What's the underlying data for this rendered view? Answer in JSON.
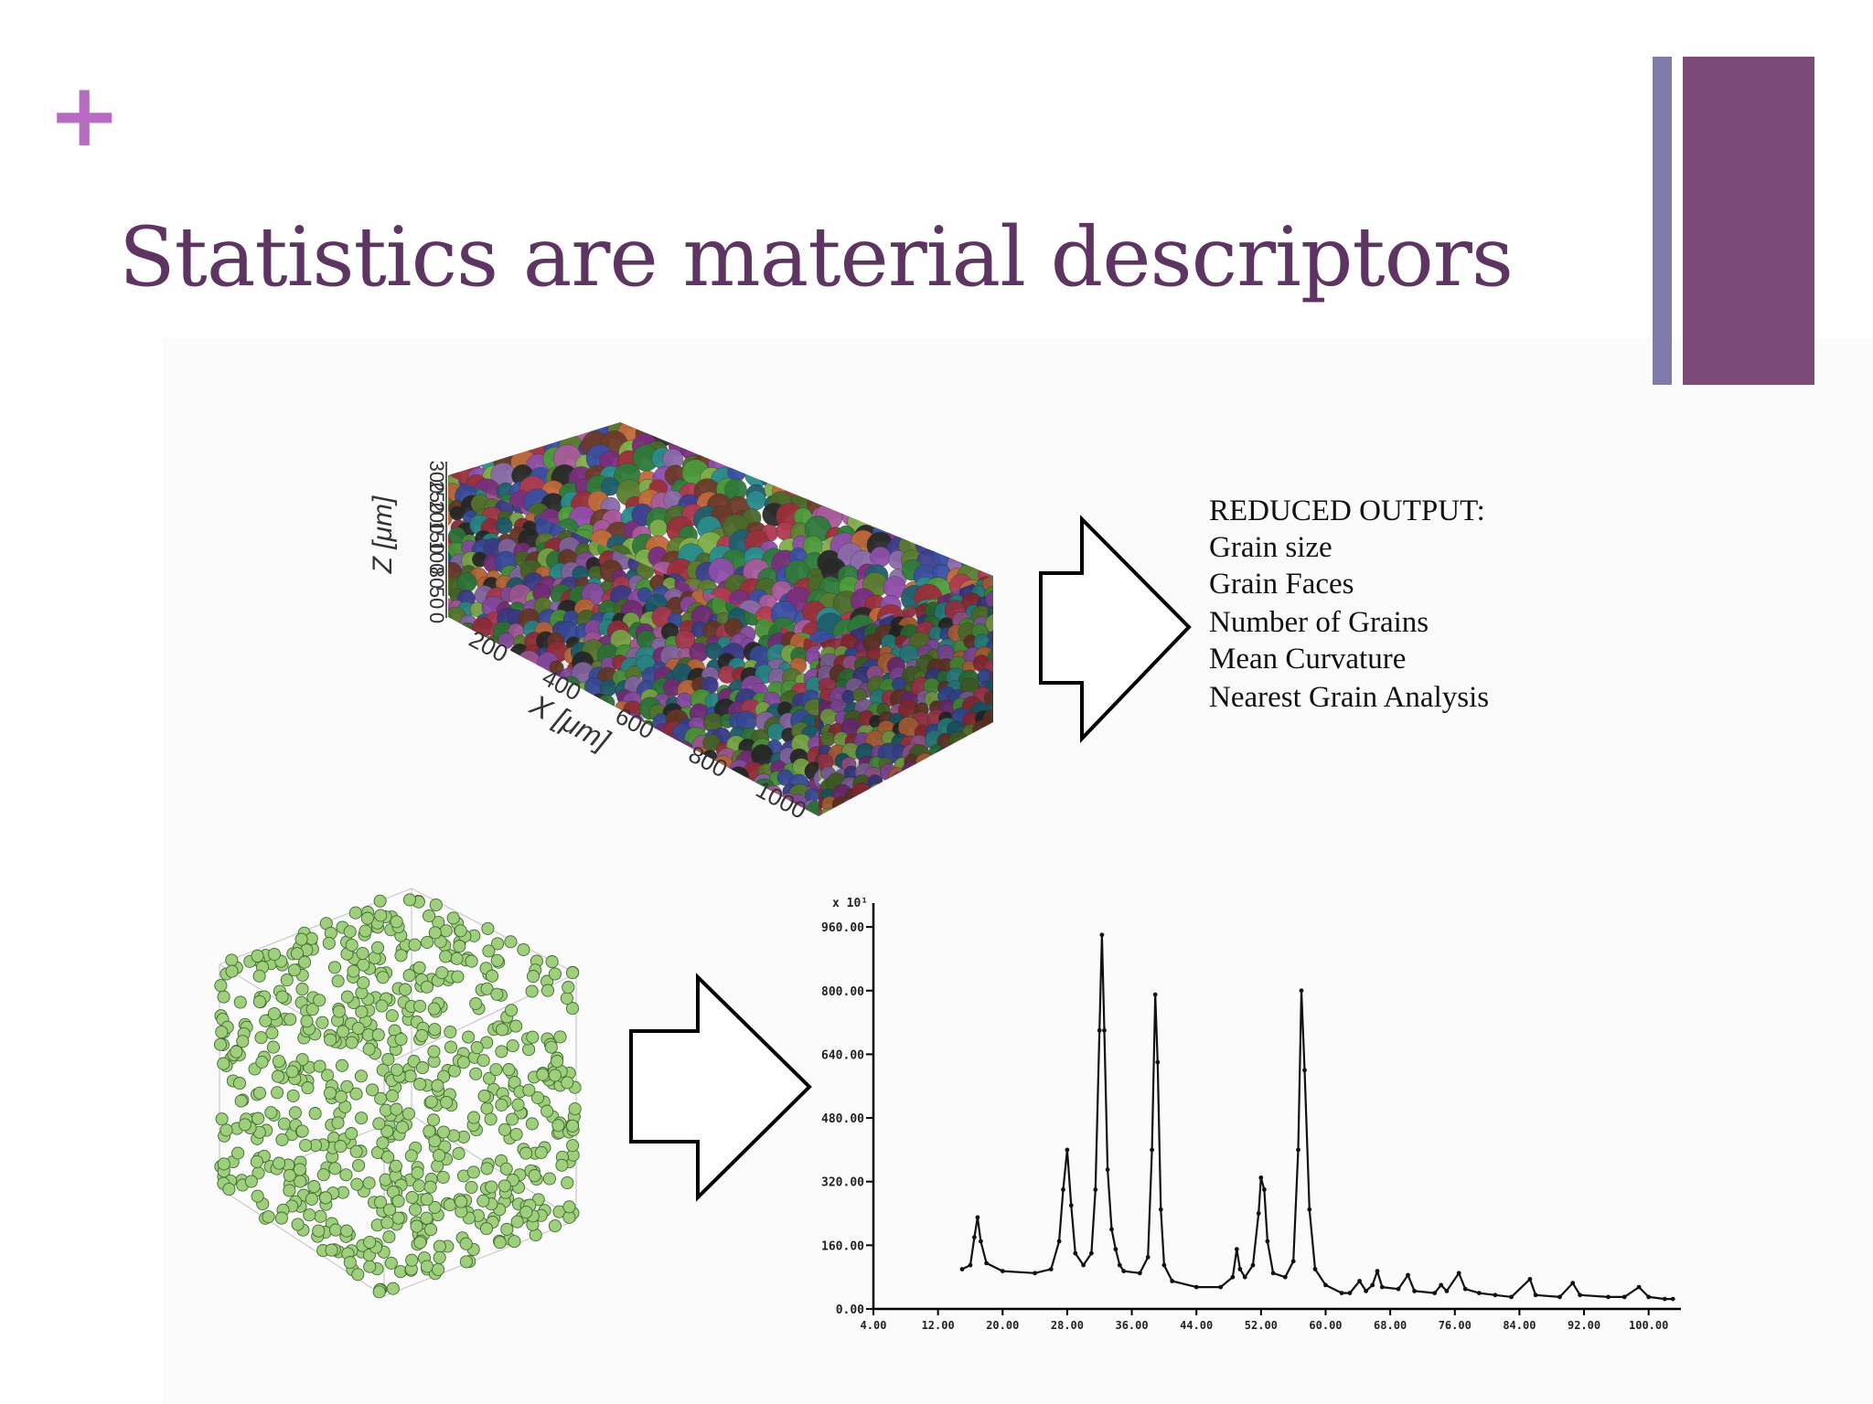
{
  "slide": {
    "plus_sign": "+",
    "title": "Statistics are material descriptors",
    "colors": {
      "plum": "#7b4a76",
      "title": "#5e3463",
      "slate": "#7f7ba8",
      "plus": "#b76bc3"
    }
  },
  "microstructure": {
    "z_axis_label": "Z [μm]",
    "z_ticks": [
      "0",
      "50",
      "80",
      "100",
      "150",
      "200",
      "250",
      "300"
    ],
    "x_axis_label": "X [μm]",
    "x_ticks": [
      "200",
      "400",
      "600",
      "800",
      "1000"
    ]
  },
  "reduced_output": {
    "heading": "REDUCED OUTPUT:",
    "items": [
      "Grain size",
      "Grain Faces",
      "Number of Grains",
      "Mean Curvature",
      "Nearest Grain Analysis"
    ]
  },
  "atoms_plot": {
    "sphere_color": "#9fcf7d"
  },
  "chart_data": {
    "type": "line",
    "title": "",
    "xlabel": "",
    "ylabel": "",
    "y_multiplier_label": "x 10¹",
    "xlim": [
      4,
      104
    ],
    "ylim": [
      0,
      1020
    ],
    "x_ticks": [
      "4.00",
      "12.00",
      "20.00",
      "28.00",
      "36.00",
      "44.00",
      "52.00",
      "60.00",
      "68.00",
      "76.00",
      "84.00",
      "92.00",
      "100.00"
    ],
    "y_ticks": [
      "0.00",
      "160.00",
      "320.00",
      "480.00",
      "640.00",
      "800.00",
      "960.00"
    ],
    "grid": false,
    "series": [
      {
        "points": [
          [
            15,
            100
          ],
          [
            16,
            110
          ],
          [
            16.5,
            180
          ],
          [
            16.9,
            230
          ],
          [
            17.3,
            170
          ],
          [
            18,
            115
          ],
          [
            20,
            95
          ],
          [
            24,
            90
          ],
          [
            26,
            100
          ],
          [
            27,
            170
          ],
          [
            27.5,
            300
          ],
          [
            28,
            400
          ],
          [
            28.5,
            260
          ],
          [
            29,
            140
          ],
          [
            30,
            110
          ],
          [
            31,
            140
          ],
          [
            31.5,
            300
          ],
          [
            32,
            700
          ],
          [
            32.3,
            940
          ],
          [
            32.6,
            700
          ],
          [
            33,
            350
          ],
          [
            33.5,
            200
          ],
          [
            34,
            150
          ],
          [
            34.5,
            110
          ],
          [
            35,
            95
          ],
          [
            37,
            90
          ],
          [
            38,
            130
          ],
          [
            38.5,
            400
          ],
          [
            38.9,
            790
          ],
          [
            39.2,
            620
          ],
          [
            39.6,
            250
          ],
          [
            40,
            110
          ],
          [
            41,
            70
          ],
          [
            44,
            55
          ],
          [
            47,
            55
          ],
          [
            48.5,
            80
          ],
          [
            49,
            150
          ],
          [
            49.4,
            100
          ],
          [
            50,
            80
          ],
          [
            51,
            110
          ],
          [
            51.7,
            240
          ],
          [
            52,
            330
          ],
          [
            52.4,
            300
          ],
          [
            52.8,
            170
          ],
          [
            53.5,
            90
          ],
          [
            55,
            80
          ],
          [
            56,
            120
          ],
          [
            56.6,
            400
          ],
          [
            57,
            800
          ],
          [
            57.4,
            600
          ],
          [
            58,
            250
          ],
          [
            58.7,
            100
          ],
          [
            60,
            60
          ],
          [
            62,
            40
          ],
          [
            63,
            40
          ],
          [
            64.2,
            70
          ],
          [
            65,
            45
          ],
          [
            65.8,
            60
          ],
          [
            66.4,
            95
          ],
          [
            67,
            55
          ],
          [
            69,
            50
          ],
          [
            70.2,
            85
          ],
          [
            71,
            45
          ],
          [
            73.5,
            40
          ],
          [
            74.3,
            60
          ],
          [
            75,
            45
          ],
          [
            76.5,
            90
          ],
          [
            77.3,
            50
          ],
          [
            79,
            40
          ],
          [
            81,
            35
          ],
          [
            83,
            30
          ],
          [
            85.3,
            75
          ],
          [
            86,
            35
          ],
          [
            89,
            30
          ],
          [
            90.6,
            65
          ],
          [
            91.5,
            35
          ],
          [
            95,
            30
          ],
          [
            97,
            30
          ],
          [
            98.8,
            55
          ],
          [
            100,
            30
          ],
          [
            102,
            25
          ],
          [
            103,
            25
          ]
        ]
      }
    ]
  }
}
